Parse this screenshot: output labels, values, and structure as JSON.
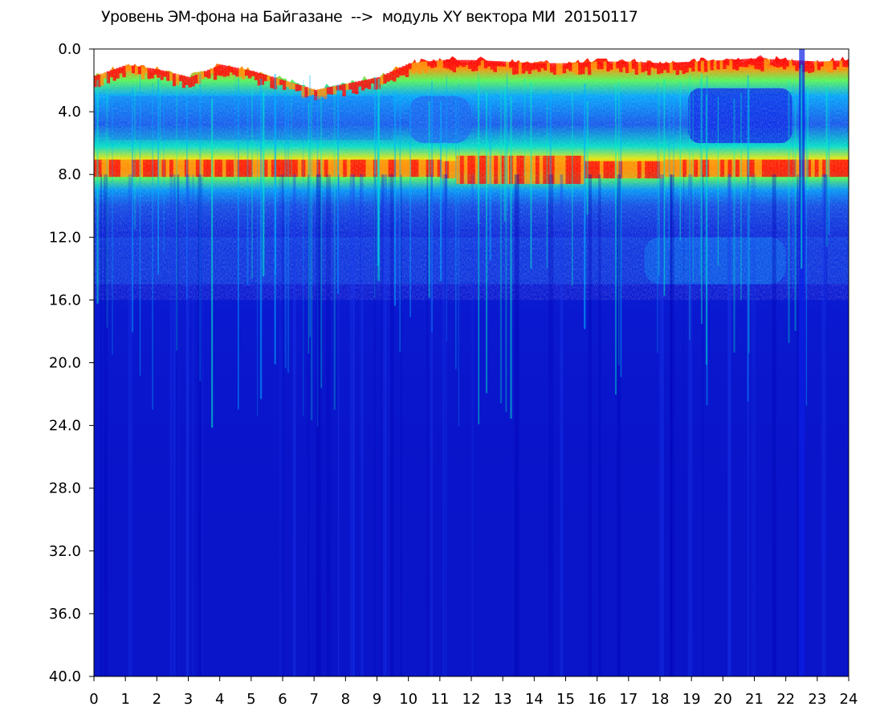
{
  "chart_data": {
    "type": "heatmap",
    "title": "Уровень ЭМ-фона на Байгазане  -->  модуль XY вектора МИ  20150117",
    "xlabel": "",
    "ylabel": "",
    "xlim": [
      0,
      24
    ],
    "ylim": [
      0.0,
      40.0
    ],
    "y_axis_inverted": true,
    "x_ticks": [
      "0",
      "1",
      "2",
      "3",
      "4",
      "5",
      "6",
      "7",
      "8",
      "9",
      "10",
      "11",
      "12",
      "13",
      "14",
      "15",
      "16",
      "17",
      "18",
      "19",
      "20",
      "21",
      "22",
      "23",
      "24"
    ],
    "y_ticks": [
      "0.0",
      "4.0",
      "8.0",
      "12.0",
      "16.0",
      "20.0",
      "24.0",
      "28.0",
      "32.0",
      "36.0",
      "40.0"
    ],
    "grid": false,
    "colormap": [
      "#0000c8",
      "#0a28e6",
      "#1464f0",
      "#00b4ff",
      "#00f0c8",
      "#5aff50",
      "#f0f000",
      "#ff8c00",
      "#ff0000",
      "#ffffff"
    ],
    "background_color": "#0a14c8",
    "features": {
      "upper_band_edge_y": [
        1.7,
        1.0,
        1.3,
        1.8,
        1.0,
        1.4,
        2.0,
        2.6,
        2.2,
        1.8,
        0.9,
        0.7,
        0.7,
        0.8,
        0.9,
        0.9,
        0.8,
        0.8,
        0.9,
        0.8,
        0.7,
        0.6,
        0.7,
        0.8,
        0.7
      ],
      "main_band_center_y": 7.6,
      "main_band_center_y_hours_11_to_18": 8.0,
      "quiet_region_y_range_hours_10_to_12": [
        3.0,
        6.0
      ],
      "quiet_region_y_range_hours_19_to_22": [
        2.5,
        6.0
      ],
      "diffuse_band_y_range": [
        12.0,
        15.0
      ],
      "dropout_hours": [
        22.5
      ]
    }
  }
}
